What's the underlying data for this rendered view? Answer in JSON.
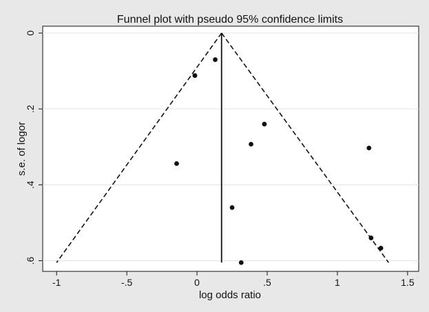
{
  "chart_data": {
    "type": "scatter",
    "title": "Funnel plot with pseudo 95% confidence limits",
    "xlabel": "log odds ratio",
    "ylabel": "s.e. of logor",
    "xlim": [
      -1.05,
      1.53
    ],
    "ylim": [
      0,
      0.61
    ],
    "y_axis_reversed": true,
    "x_ticks": [
      -1,
      -0.5,
      0,
      0.5,
      1,
      1.5
    ],
    "x_tick_labels": [
      "-1",
      "-.5",
      "0",
      ".5",
      "1",
      "1.5"
    ],
    "y_ticks": [
      0,
      0.2,
      0.4,
      0.6
    ],
    "y_tick_labels": [
      "0",
      ".2",
      ".4",
      ".6"
    ],
    "grid": "horizontal",
    "pooled_estimate": 0.175,
    "funnel": {
      "apex": [
        0.175,
        0
      ],
      "left_end": [
        -1.0,
        0.605
      ],
      "right_end": [
        1.365,
        0.605
      ]
    },
    "points": [
      {
        "x": -0.015,
        "y": 0.112
      },
      {
        "x": 0.13,
        "y": 0.07
      },
      {
        "x": 0.48,
        "y": 0.24
      },
      {
        "x": 0.385,
        "y": 0.293
      },
      {
        "x": 1.225,
        "y": 0.303
      },
      {
        "x": -0.145,
        "y": 0.344
      },
      {
        "x": 0.25,
        "y": 0.46
      },
      {
        "x": 1.24,
        "y": 0.54
      },
      {
        "x": 1.31,
        "y": 0.567
      },
      {
        "x": 0.315,
        "y": 0.605
      }
    ],
    "colors": {
      "background": "#e8e8e8",
      "plot_area": "#ffffff",
      "grid": "#e3e3e3",
      "ink": "#111111"
    }
  }
}
